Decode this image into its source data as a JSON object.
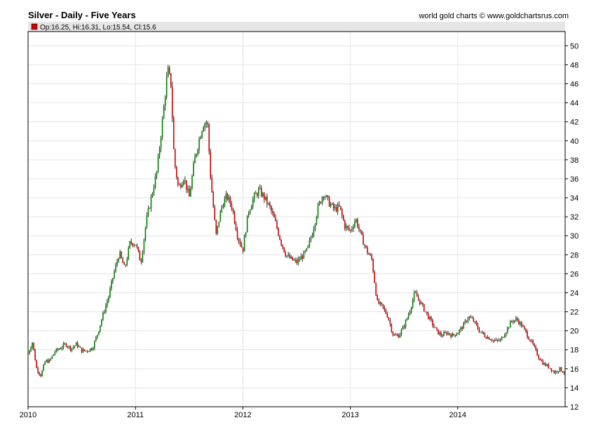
{
  "chart_data": {
    "type": "candlestick",
    "title": "Silver - Daily - Five Years",
    "credit": "world gold charts © www.goldchartsrus.com",
    "legend": "Op:16.25, Hi:16.31, Lo:15.54, Cl:15.6",
    "xlabel": "",
    "ylabel": "",
    "x_ticks": [
      "2010",
      "2011",
      "2012",
      "2013",
      "2014"
    ],
    "y_ticks": [
      "12",
      "14",
      "16",
      "18",
      "20",
      "22",
      "24",
      "26",
      "28",
      "30",
      "32",
      "34",
      "36",
      "38",
      "40",
      "42",
      "44",
      "46",
      "48",
      "50"
    ],
    "xlim": [
      2010.0,
      2015.0
    ],
    "ylim": [
      12,
      51.5
    ],
    "grid": true,
    "colors": {
      "up": "#008000",
      "down": "#cc0000",
      "wick": "#000000",
      "header": "#e6e6e6"
    },
    "x": [
      2010.0,
      2010.04,
      2010.08,
      2010.12,
      2010.16,
      2010.2,
      2010.25,
      2010.3,
      2010.35,
      2010.4,
      2010.45,
      2010.5,
      2010.55,
      2010.6,
      2010.65,
      2010.7,
      2010.75,
      2010.8,
      2010.85,
      2010.9,
      2010.95,
      2011.0,
      2011.05,
      2011.1,
      2011.15,
      2011.2,
      2011.25,
      2011.3,
      2011.33,
      2011.36,
      2011.4,
      2011.45,
      2011.5,
      2011.55,
      2011.6,
      2011.63,
      2011.67,
      2011.7,
      2011.75,
      2011.8,
      2011.85,
      2011.9,
      2011.95,
      2012.0,
      2012.05,
      2012.1,
      2012.15,
      2012.2,
      2012.25,
      2012.3,
      2012.35,
      2012.4,
      2012.45,
      2012.5,
      2012.55,
      2012.6,
      2012.65,
      2012.7,
      2012.75,
      2012.8,
      2012.85,
      2012.9,
      2012.95,
      2013.0,
      2013.05,
      2013.1,
      2013.15,
      2013.2,
      2013.25,
      2013.3,
      2013.35,
      2013.4,
      2013.45,
      2013.5,
      2013.55,
      2013.6,
      2013.65,
      2013.7,
      2013.75,
      2013.8,
      2013.85,
      2013.9,
      2013.95,
      2014.0,
      2014.05,
      2014.1,
      2014.15,
      2014.2,
      2014.25,
      2014.3,
      2014.35,
      2014.4,
      2014.45,
      2014.5,
      2014.55,
      2014.6,
      2014.65,
      2014.7,
      2014.75,
      2014.8,
      2014.85,
      2014.9,
      2014.95,
      2014.99
    ],
    "values": [
      17.6,
      18.8,
      16.0,
      15.3,
      16.8,
      16.8,
      17.8,
      18.2,
      18.6,
      18.1,
      18.6,
      17.9,
      17.9,
      18.2,
      19.8,
      21.8,
      23.6,
      26.1,
      28.2,
      26.5,
      29.3,
      29.2,
      27.2,
      31.5,
      34.2,
      36.8,
      42.0,
      47.5,
      46.0,
      38.0,
      35.0,
      36.2,
      34.0,
      38.0,
      40.5,
      41.8,
      42.0,
      36.0,
      30.0,
      33.0,
      34.2,
      33.0,
      30.0,
      28.5,
      32.5,
      34.0,
      34.8,
      34.0,
      33.0,
      31.5,
      29.5,
      28.0,
      27.5,
      27.2,
      27.8,
      28.5,
      30.5,
      33.0,
      34.5,
      33.5,
      32.8,
      33.0,
      31.0,
      30.5,
      31.8,
      30.0,
      28.5,
      27.5,
      23.0,
      22.5,
      21.5,
      19.5,
      19.5,
      20.5,
      22.0,
      24.0,
      23.0,
      22.0,
      21.0,
      20.0,
      19.5,
      19.8,
      19.5,
      19.8,
      20.5,
      21.5,
      21.0,
      20.0,
      19.5,
      19.2,
      18.9,
      19.0,
      20.0,
      21.0,
      21.2,
      20.5,
      19.5,
      18.5,
      17.3,
      16.5,
      16.2,
      15.6,
      16.0,
      15.6
    ]
  }
}
